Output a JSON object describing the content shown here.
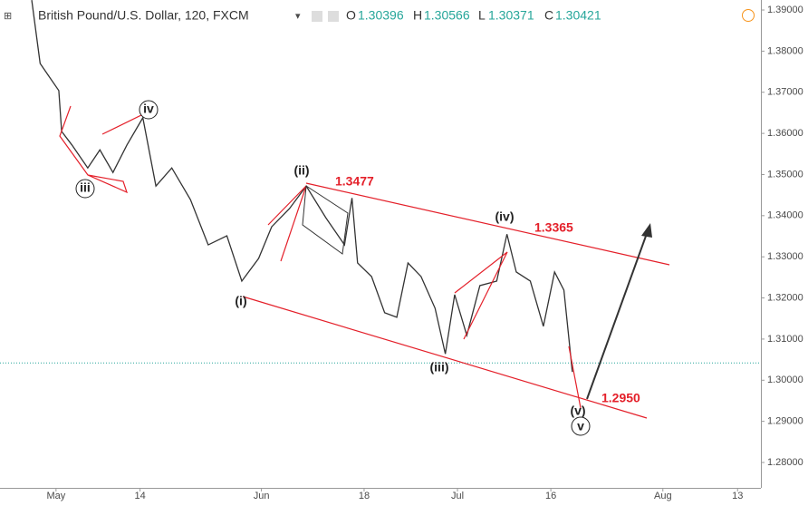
{
  "chart_data": {
    "type": "line",
    "title": "British Pound/U.S. Dollar, 120, FXCM",
    "ohlc": {
      "open_label": "O",
      "open": 1.30396,
      "high_label": "H",
      "high": 1.30566,
      "low_label": "L",
      "low": 1.30371,
      "close_label": "C",
      "close": 1.30421
    },
    "x": [
      -2.6,
      -1.7,
      -0.7,
      0.3,
      0.6,
      1.7,
      3.4,
      4.7,
      6.1,
      7.6,
      9.3,
      10.7,
      12.4,
      14.4,
      16.3,
      18.3,
      19.9,
      21.7,
      23.1,
      25.0,
      26.8,
      28.9,
      30.9,
      31.7,
      32.3,
      33.8,
      35.2,
      36.5,
      37.7,
      39.1,
      40.6,
      41.7,
      42.7,
      44.0,
      45.4,
      47.2,
      48.3,
      49.3,
      50.8,
      52.2,
      53.4,
      54.4,
      55.0,
      55.3
    ],
    "series": [
      {
        "name": "GBPUSD",
        "color": "#333333",
        "values": [
          1.3924,
          1.377,
          1.3737,
          1.3704,
          1.3605,
          1.3572,
          1.3516,
          1.356,
          1.3505,
          1.3572,
          1.3638,
          1.3472,
          1.3516,
          1.3439,
          1.3329,
          1.3351,
          1.3241,
          1.3296,
          1.3373,
          1.3417,
          1.3472,
          1.3395,
          1.3329,
          1.3443,
          1.3285,
          1.3252,
          1.3164,
          1.3153,
          1.3285,
          1.3252,
          1.3175,
          1.3064,
          1.3208,
          1.3109,
          1.323,
          1.3241,
          1.3355,
          1.3263,
          1.3241,
          1.3131,
          1.3263,
          1.3219,
          1.3087,
          1.302
        ]
      }
    ],
    "xlim": [
      -6,
      75.5
    ],
    "xticks": [
      {
        "value": 0,
        "label": "May"
      },
      {
        "value": 9,
        "label": "14"
      },
      {
        "value": 22,
        "label": "Jun"
      },
      {
        "value": 33,
        "label": "18"
      },
      {
        "value": 43,
        "label": "Jul"
      },
      {
        "value": 53,
        "label": "16"
      },
      {
        "value": 65,
        "label": "Aug"
      },
      {
        "value": 73,
        "label": "13"
      }
    ],
    "ylim": [
      1.27383,
      1.39243
    ],
    "yticks": [
      {
        "value": 1.28,
        "label": "1.28000"
      },
      {
        "value": 1.29,
        "label": "1.29000"
      },
      {
        "value": 1.3,
        "label": "1.30000"
      },
      {
        "value": 1.31,
        "label": "1.31000"
      },
      {
        "value": 1.32,
        "label": "1.32000"
      },
      {
        "value": 1.33,
        "label": "1.33000"
      },
      {
        "value": 1.34,
        "label": "1.34000"
      },
      {
        "value": 1.35,
        "label": "1.35000"
      },
      {
        "value": 1.36,
        "label": "1.36000"
      },
      {
        "value": 1.37,
        "label": "1.37000"
      },
      {
        "value": 1.38,
        "label": "1.38000"
      },
      {
        "value": 1.39,
        "label": "1.39000"
      }
    ],
    "waves": [
      "iii",
      "iv",
      "(i)",
      "(ii)",
      "(iii)",
      "(iv)",
      "(v)",
      "v"
    ],
    "price_labels": [
      1.3477,
      1.3365,
      {
        "value": 1.295,
        "label": "1.2950"
      }
    ]
  }
}
